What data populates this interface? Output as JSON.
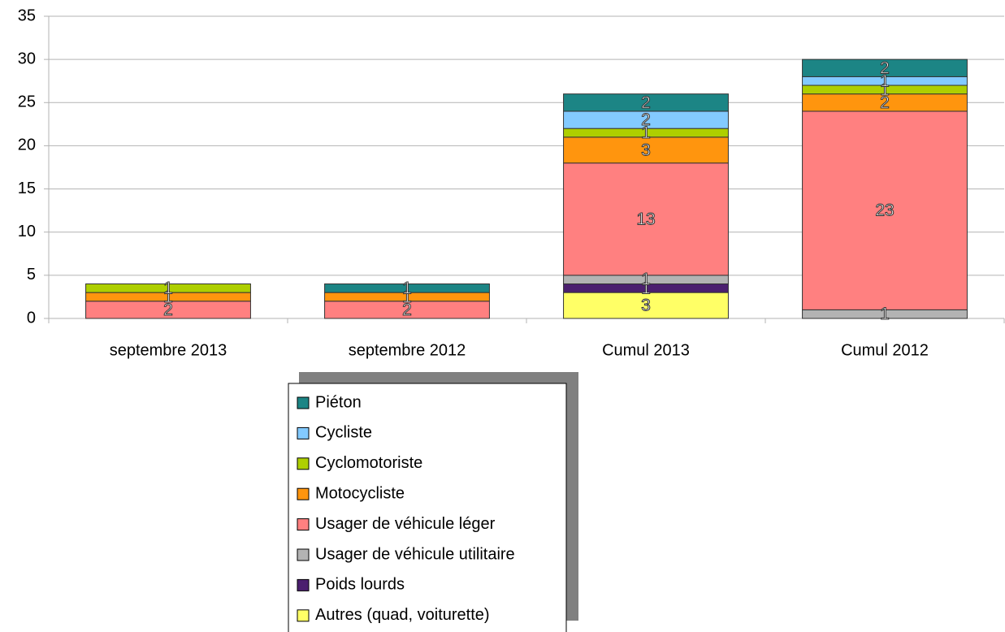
{
  "chart_data": {
    "type": "stacked_bar",
    "categories": [
      "septembre 2013",
      "septembre 2012",
      "Cumul 2013",
      "Cumul 2012"
    ],
    "series": [
      {
        "name": "Autres (quad, voiturette)",
        "color": "#ffff66",
        "values": [
          0,
          0,
          3,
          0
        ]
      },
      {
        "name": "Poids lourds",
        "color": "#4b1f6f",
        "values": [
          0,
          0,
          1,
          0
        ]
      },
      {
        "name": "Usager de véhicule utilitaire",
        "color": "#b3b3b3",
        "values": [
          0,
          0,
          1,
          1
        ]
      },
      {
        "name": "Usager de véhicule léger",
        "color": "#ff8080",
        "values": [
          2,
          2,
          13,
          23
        ]
      },
      {
        "name": "Motocycliste",
        "color": "#ff950e",
        "values": [
          1,
          1,
          3,
          2
        ]
      },
      {
        "name": "Cyclomotoriste",
        "color": "#aecf00",
        "values": [
          1,
          0,
          1,
          1
        ]
      },
      {
        "name": "Cycliste",
        "color": "#83caff",
        "values": [
          0,
          0,
          2,
          1
        ]
      },
      {
        "name": "Piéton",
        "color": "#1c8585",
        "values": [
          0,
          1,
          2,
          2
        ]
      }
    ],
    "ylim": [
      0,
      35
    ],
    "yticks": [
      0,
      5,
      10,
      15,
      20,
      25,
      30,
      35
    ],
    "grid": true,
    "legend": "bottom"
  }
}
